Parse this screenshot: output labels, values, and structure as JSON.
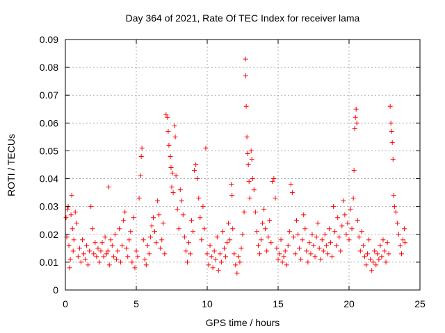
{
  "chart_data": {
    "type": "scatter",
    "title": "Day 364 of 2021, Rate Of TEC Index for receiver lama",
    "xlabel": "GPS time / hours",
    "ylabel": "ROTI / TECUs",
    "xlim": [
      0,
      25
    ],
    "ylim": [
      0,
      0.09
    ],
    "xticks": [
      0,
      5,
      10,
      15,
      20,
      25
    ],
    "xtick_labels": [
      "0",
      "5",
      "10",
      "15",
      "20",
      "25"
    ],
    "yticks": [
      0,
      0.01,
      0.02,
      0.03,
      0.04,
      0.05,
      0.06,
      0.07,
      0.08,
      0.09
    ],
    "ytick_labels": [
      "0",
      "0.01",
      "0.02",
      "0.03",
      "0.04",
      "0.05",
      "0.06",
      "0.07",
      "0.08",
      "0.09"
    ],
    "grid": true,
    "marker": "+",
    "color": "#ff0000",
    "series": [
      {
        "points": [
          [
            0.05,
            0.026
          ],
          [
            0.1,
            0.019
          ],
          [
            0.15,
            0.029
          ],
          [
            0.2,
            0.03
          ],
          [
            0.25,
            0.016
          ],
          [
            0.3,
            0.008
          ],
          [
            0.35,
            0.011
          ],
          [
            0.4,
            0.027
          ],
          [
            0.45,
            0.034
          ],
          [
            0.5,
            0.022
          ],
          [
            0.55,
            0.014
          ],
          [
            0.6,
            0.018
          ],
          [
            0.7,
            0.028
          ],
          [
            0.8,
            0.024
          ],
          [
            0.9,
            0.012
          ],
          [
            1.0,
            0.015
          ],
          [
            1.1,
            0.01
          ],
          [
            1.2,
            0.018
          ],
          [
            1.3,
            0.013
          ],
          [
            1.4,
            0.011
          ],
          [
            1.5,
            0.016
          ],
          [
            1.6,
            0.009
          ],
          [
            1.7,
            0.014
          ],
          [
            1.8,
            0.03
          ],
          [
            1.9,
            0.022
          ],
          [
            2.0,
            0.013
          ],
          [
            2.1,
            0.017
          ],
          [
            2.2,
            0.012
          ],
          [
            2.3,
            0.015
          ],
          [
            2.4,
            0.01
          ],
          [
            2.5,
            0.014
          ],
          [
            2.6,
            0.017
          ],
          [
            2.7,
            0.012
          ],
          [
            2.8,
            0.019
          ],
          [
            2.9,
            0.013
          ],
          [
            3.0,
            0.014
          ],
          [
            3.05,
            0.037
          ],
          [
            3.1,
            0.009
          ],
          [
            3.2,
            0.018
          ],
          [
            3.3,
            0.016
          ],
          [
            3.4,
            0.012
          ],
          [
            3.5,
            0.02
          ],
          [
            3.6,
            0.011
          ],
          [
            3.7,
            0.014
          ],
          [
            3.8,
            0.022
          ],
          [
            3.9,
            0.01
          ],
          [
            4.0,
            0.016
          ],
          [
            4.1,
            0.025
          ],
          [
            4.2,
            0.028
          ],
          [
            4.3,
            0.015
          ],
          [
            4.4,
            0.012
          ],
          [
            4.5,
            0.018
          ],
          [
            4.6,
            0.021
          ],
          [
            4.7,
            0.01
          ],
          [
            4.8,
            0.026
          ],
          [
            4.9,
            0.008
          ],
          [
            5.0,
            0.014
          ],
          [
            5.1,
            0.012
          ],
          [
            5.2,
            0.033
          ],
          [
            5.3,
            0.041
          ],
          [
            5.35,
            0.048
          ],
          [
            5.4,
            0.051
          ],
          [
            5.5,
            0.018
          ],
          [
            5.6,
            0.011
          ],
          [
            5.7,
            0.009
          ],
          [
            5.8,
            0.016
          ],
          [
            5.9,
            0.013
          ],
          [
            6.0,
            0.019
          ],
          [
            6.1,
            0.023
          ],
          [
            6.2,
            0.026
          ],
          [
            6.3,
            0.021
          ],
          [
            6.4,
            0.017
          ],
          [
            6.5,
            0.032
          ],
          [
            6.6,
            0.027
          ],
          [
            6.7,
            0.015
          ],
          [
            6.8,
            0.018
          ],
          [
            6.9,
            0.024
          ],
          [
            7.0,
            0.013
          ],
          [
            7.1,
            0.063
          ],
          [
            7.2,
            0.062
          ],
          [
            7.25,
            0.057
          ],
          [
            7.3,
            0.052
          ],
          [
            7.4,
            0.048
          ],
          [
            7.45,
            0.044
          ],
          [
            7.5,
            0.037
          ],
          [
            7.55,
            0.042
          ],
          [
            7.6,
            0.035
          ],
          [
            7.7,
            0.059
          ],
          [
            7.75,
            0.055
          ],
          [
            7.8,
            0.041
          ],
          [
            7.9,
            0.029
          ],
          [
            8.0,
            0.022
          ],
          [
            8.1,
            0.036
          ],
          [
            8.2,
            0.032
          ],
          [
            8.3,
            0.027
          ],
          [
            8.4,
            0.019
          ],
          [
            8.5,
            0.014
          ],
          [
            8.6,
            0.01
          ],
          [
            8.7,
            0.017
          ],
          [
            8.8,
            0.013
          ],
          [
            8.9,
            0.025
          ],
          [
            9.0,
            0.021
          ],
          [
            9.1,
            0.043
          ],
          [
            9.2,
            0.045
          ],
          [
            9.3,
            0.04
          ],
          [
            9.4,
            0.033
          ],
          [
            9.5,
            0.026
          ],
          [
            9.6,
            0.018
          ],
          [
            9.7,
            0.03
          ],
          [
            9.8,
            0.022
          ],
          [
            9.9,
            0.051
          ],
          [
            10.0,
            0.013
          ],
          [
            10.1,
            0.009
          ],
          [
            10.2,
            0.016
          ],
          [
            10.3,
            0.012
          ],
          [
            10.4,
            0.008
          ],
          [
            10.5,
            0.014
          ],
          [
            10.6,
            0.011
          ],
          [
            10.7,
            0.019
          ],
          [
            10.8,
            0.007
          ],
          [
            10.9,
            0.013
          ],
          [
            11.0,
            0.01
          ],
          [
            11.1,
            0.021
          ],
          [
            11.2,
            0.015
          ],
          [
            11.3,
            0.012
          ],
          [
            11.4,
            0.017
          ],
          [
            11.5,
            0.024
          ],
          [
            11.6,
            0.018
          ],
          [
            11.7,
            0.038
          ],
          [
            11.75,
            0.034
          ],
          [
            11.8,
            0.022
          ],
          [
            11.9,
            0.013
          ],
          [
            12.0,
            0.009
          ],
          [
            12.1,
            0.006
          ],
          [
            12.2,
            0.012
          ],
          [
            12.3,
            0.01
          ],
          [
            12.4,
            0.015
          ],
          [
            12.5,
            0.02
          ],
          [
            12.6,
            0.028
          ],
          [
            12.7,
            0.083
          ],
          [
            12.72,
            0.077
          ],
          [
            12.75,
            0.066
          ],
          [
            12.8,
            0.055
          ],
          [
            12.85,
            0.049
          ],
          [
            12.9,
            0.045
          ],
          [
            12.95,
            0.039
          ],
          [
            13.0,
            0.033
          ],
          [
            13.1,
            0.05
          ],
          [
            13.15,
            0.047
          ],
          [
            13.2,
            0.04
          ],
          [
            13.3,
            0.036
          ],
          [
            13.4,
            0.028
          ],
          [
            13.5,
            0.021
          ],
          [
            13.6,
            0.016
          ],
          [
            13.7,
            0.013
          ],
          [
            13.8,
            0.018
          ],
          [
            13.9,
            0.024
          ],
          [
            14.0,
            0.029
          ],
          [
            14.1,
            0.022
          ],
          [
            14.2,
            0.014
          ],
          [
            14.3,
            0.019
          ],
          [
            14.4,
            0.025
          ],
          [
            14.5,
            0.017
          ],
          [
            14.6,
            0.039
          ],
          [
            14.7,
            0.04
          ],
          [
            14.8,
            0.033
          ],
          [
            14.9,
            0.015
          ],
          [
            15.0,
            0.011
          ],
          [
            15.1,
            0.013
          ],
          [
            15.2,
            0.018
          ],
          [
            15.3,
            0.01
          ],
          [
            15.4,
            0.012
          ],
          [
            15.5,
            0.014
          ],
          [
            15.6,
            0.009
          ],
          [
            15.7,
            0.016
          ],
          [
            15.8,
            0.021
          ],
          [
            15.9,
            0.038
          ],
          [
            16.0,
            0.035
          ],
          [
            16.1,
            0.019
          ],
          [
            16.2,
            0.013
          ],
          [
            16.3,
            0.025
          ],
          [
            16.4,
            0.02
          ],
          [
            16.5,
            0.015
          ],
          [
            16.6,
            0.011
          ],
          [
            16.7,
            0.018
          ],
          [
            16.8,
            0.027
          ],
          [
            16.9,
            0.022
          ],
          [
            17.0,
            0.014
          ],
          [
            17.1,
            0.01
          ],
          [
            17.2,
            0.017
          ],
          [
            17.3,
            0.013
          ],
          [
            17.4,
            0.02
          ],
          [
            17.5,
            0.016
          ],
          [
            17.6,
            0.012
          ],
          [
            17.7,
            0.019
          ],
          [
            17.8,
            0.024
          ],
          [
            17.9,
            0.015
          ],
          [
            18.0,
            0.011
          ],
          [
            18.1,
            0.018
          ],
          [
            18.2,
            0.014
          ],
          [
            18.3,
            0.02
          ],
          [
            18.4,
            0.016
          ],
          [
            18.5,
            0.013
          ],
          [
            18.6,
            0.022
          ],
          [
            18.7,
            0.017
          ],
          [
            18.8,
            0.012
          ],
          [
            18.9,
            0.03
          ],
          [
            19.0,
            0.021
          ],
          [
            19.1,
            0.016
          ],
          [
            19.2,
            0.026
          ],
          [
            19.3,
            0.019
          ],
          [
            19.4,
            0.014
          ],
          [
            19.5,
            0.023
          ],
          [
            19.6,
            0.032
          ],
          [
            19.7,
            0.027
          ],
          [
            19.8,
            0.02
          ],
          [
            19.9,
            0.024
          ],
          [
            20.0,
            0.018
          ],
          [
            20.1,
            0.029
          ],
          [
            20.2,
            0.022
          ],
          [
            20.3,
            0.033
          ],
          [
            20.35,
            0.043
          ],
          [
            20.4,
            0.058
          ],
          [
            20.45,
            0.062
          ],
          [
            20.5,
            0.065
          ],
          [
            20.55,
            0.06
          ],
          [
            20.6,
            0.025
          ],
          [
            20.7,
            0.019
          ],
          [
            20.8,
            0.014
          ],
          [
            20.9,
            0.021
          ],
          [
            21.0,
            0.016
          ],
          [
            21.1,
            0.012
          ],
          [
            21.2,
            0.009
          ],
          [
            21.3,
            0.013
          ],
          [
            21.4,
            0.018
          ],
          [
            21.5,
            0.011
          ],
          [
            21.6,
            0.007
          ],
          [
            21.7,
            0.01
          ],
          [
            21.8,
            0.014
          ],
          [
            21.9,
            0.009
          ],
          [
            22.0,
            0.013
          ],
          [
            22.1,
            0.011
          ],
          [
            22.2,
            0.016
          ],
          [
            22.3,
            0.012
          ],
          [
            22.4,
            0.018
          ],
          [
            22.5,
            0.014
          ],
          [
            22.6,
            0.01
          ],
          [
            22.7,
            0.017
          ],
          [
            22.8,
            0.013
          ],
          [
            22.9,
            0.066
          ],
          [
            22.95,
            0.06
          ],
          [
            23.0,
            0.057
          ],
          [
            23.05,
            0.053
          ],
          [
            23.1,
            0.047
          ],
          [
            23.15,
            0.034
          ],
          [
            23.2,
            0.03
          ],
          [
            23.3,
            0.028
          ],
          [
            23.4,
            0.024
          ],
          [
            23.5,
            0.02
          ],
          [
            23.6,
            0.016
          ],
          [
            23.7,
            0.013
          ],
          [
            23.8,
            0.018
          ],
          [
            23.9,
            0.022
          ],
          [
            23.95,
            0.017
          ]
        ]
      }
    ]
  }
}
